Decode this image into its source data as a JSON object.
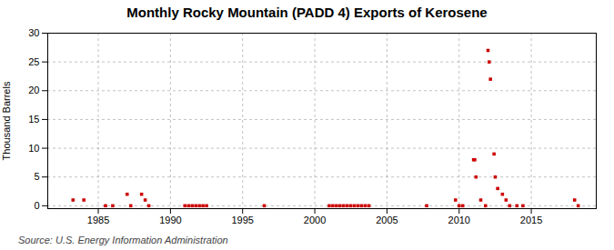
{
  "chart_data": {
    "type": "scatter",
    "title": "Monthly Rocky Mountain (PADD 4) Exports of Kerosene",
    "ylabel": "Thousand Barrels",
    "source": "Source: U.S. Energy Information Administration",
    "color": "#cc0000",
    "marker": "square",
    "grid": true,
    "xlim": [
      1981.5,
      2019.5
    ],
    "ylim": [
      -0.5,
      30
    ],
    "xticks": [
      1985,
      1990,
      1995,
      2000,
      2005,
      2010,
      2015
    ],
    "yticks": [
      0,
      5,
      10,
      15,
      20,
      25,
      30
    ],
    "x": [
      1983.25,
      1984.0,
      1985.5,
      1986.0,
      1987.0,
      1987.25,
      1988.0,
      1988.25,
      1988.5,
      1991.0,
      1991.25,
      1991.5,
      1991.75,
      1992.0,
      1992.25,
      1992.5,
      1996.5,
      2001.0,
      2001.25,
      2001.5,
      2001.75,
      2002.0,
      2002.25,
      2002.5,
      2002.75,
      2003.0,
      2003.25,
      2003.5,
      2003.75,
      2007.75,
      2009.75,
      2010.0,
      2010.25,
      2011.0,
      2011.08,
      2011.17,
      2011.5,
      2011.83,
      2012.0,
      2012.08,
      2012.17,
      2012.42,
      2012.5,
      2012.67,
      2013.0,
      2013.25,
      2013.5,
      2014.0,
      2014.42,
      2018.0,
      2018.25
    ],
    "values": [
      1,
      1,
      0,
      0,
      2,
      0,
      2,
      1,
      0,
      0,
      0,
      0,
      0,
      0,
      0,
      0,
      0,
      0,
      0,
      0,
      0,
      0,
      0,
      0,
      0,
      0,
      0,
      0,
      0,
      0,
      1,
      0,
      0,
      8,
      8,
      5,
      1,
      0,
      27,
      25,
      22,
      9,
      5,
      3,
      2,
      1,
      0,
      0,
      0,
      1,
      0
    ]
  }
}
